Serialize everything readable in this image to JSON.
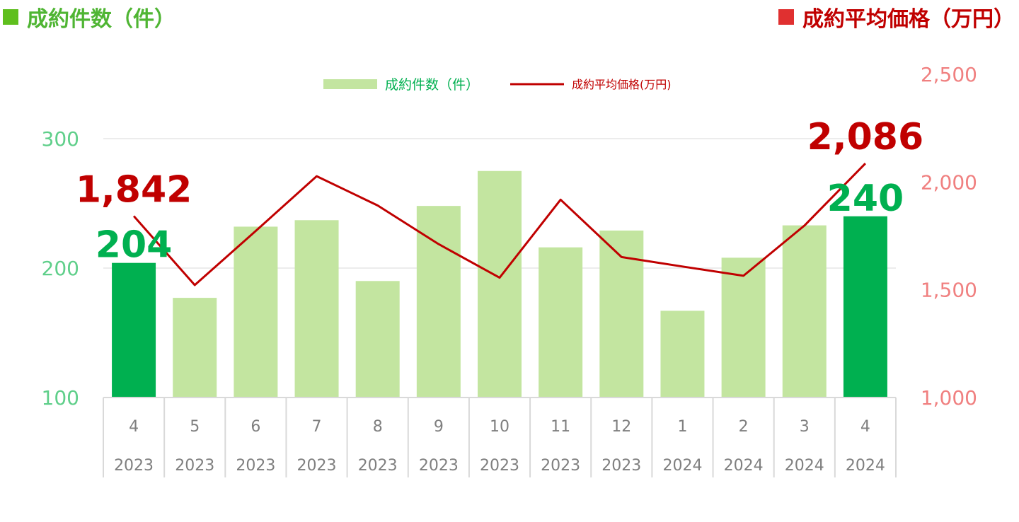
{
  "header": {
    "left_title": "成約件数（件）",
    "right_title": "成約平均価格（万円）"
  },
  "colors": {
    "bar_light": "#c3e5a0",
    "bar_highlight": "#00b050",
    "line": "#c00000",
    "left_axis_text": "#5fcf8a",
    "right_axis_text": "#f08080",
    "left_title": "#4fb533",
    "left_title_square": "#5fbf1e",
    "right_title": "#c00000",
    "right_title_square": "#e03030",
    "axis_label_text": "#7f7f7f",
    "grid": "#d9d9d9"
  },
  "chart_data": {
    "type": "bar",
    "categories": [
      "4",
      "5",
      "6",
      "7",
      "8",
      "9",
      "10",
      "11",
      "12",
      "1",
      "2",
      "3",
      "4"
    ],
    "years": [
      "2023",
      "2023",
      "2023",
      "2023",
      "2023",
      "2023",
      "2023",
      "2023",
      "2023",
      "2024",
      "2024",
      "2024",
      "2024"
    ],
    "series": [
      {
        "name": "成約件数（件）",
        "type": "bar",
        "axis": "left",
        "values": [
          204,
          177,
          232,
          237,
          190,
          248,
          275,
          216,
          229,
          167,
          208,
          233,
          240
        ],
        "highlight": [
          true,
          false,
          false,
          false,
          false,
          false,
          false,
          false,
          false,
          false,
          false,
          false,
          true
        ]
      },
      {
        "name": "成約平均価格(万円)",
        "type": "line",
        "axis": "right",
        "values": [
          1842,
          1522,
          1773,
          2027,
          1891,
          1712,
          1556,
          1918,
          1652,
          1608,
          1565,
          1798,
          2086
        ]
      }
    ],
    "left_axis": {
      "min": 100,
      "max": 300,
      "ticks": [
        "100",
        "200",
        "300"
      ]
    },
    "right_axis": {
      "min": 1000,
      "max": 2500,
      "ticks": [
        "1,000",
        "1,500",
        "2,000",
        "2,500"
      ]
    },
    "annotations": [
      {
        "series": "line",
        "index": 0,
        "text": "1,842"
      },
      {
        "series": "bar",
        "index": 0,
        "text": "204"
      },
      {
        "series": "line",
        "index": 12,
        "text": "2,086"
      },
      {
        "series": "bar",
        "index": 12,
        "text": "240"
      }
    ],
    "legend_position": "top-center",
    "grid": true
  }
}
